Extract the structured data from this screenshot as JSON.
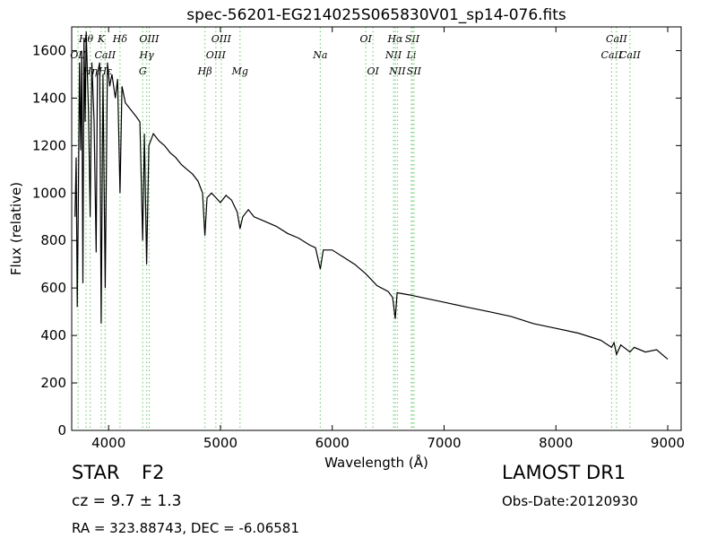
{
  "chart_data": {
    "type": "line",
    "title": "spec-56201-EG214025S065830V01_sp14-076.fits",
    "xlabel": "Wavelength (Å)",
    "ylabel": "Flux (relative)",
    "color": "#000000",
    "line_color": "#7fcf7f",
    "xlim": [
      3670,
      9120
    ],
    "ylim": [
      0,
      1700
    ],
    "xticks": [
      4000,
      5000,
      6000,
      7000,
      8000,
      9000
    ],
    "yticks": [
      0,
      200,
      400,
      600,
      800,
      1000,
      1200,
      1400,
      1600
    ],
    "x": [
      3700,
      3710,
      3720,
      3730,
      3740,
      3750,
      3760,
      3770,
      3780,
      3790,
      3800,
      3820,
      3835,
      3850,
      3870,
      3889,
      3900,
      3920,
      3934,
      3950,
      3970,
      3990,
      4010,
      4030,
      4060,
      4080,
      4102,
      4120,
      4150,
      4200,
      4250,
      4280,
      4305,
      4320,
      4340,
      4360,
      4400,
      4450,
      4500,
      4550,
      4600,
      4650,
      4700,
      4750,
      4800,
      4840,
      4861,
      4880,
      4920,
      4960,
      5000,
      5050,
      5100,
      5150,
      5175,
      5200,
      5250,
      5300,
      5400,
      5500,
      5600,
      5700,
      5800,
      5850,
      5893,
      5920,
      6000,
      6100,
      6200,
      6300,
      6400,
      6500,
      6540,
      6563,
      6580,
      6700,
      6800,
      6900,
      7000,
      7200,
      7400,
      7600,
      7800,
      8000,
      8200,
      8400,
      8498,
      8520,
      8542,
      8580,
      8662,
      8700,
      8800,
      8900,
      8950,
      9000
    ],
    "values": [
      900,
      1150,
      520,
      1000,
      1550,
      1180,
      1600,
      620,
      1650,
      1300,
      1680,
      1350,
      900,
      1550,
      1300,
      750,
      1500,
      1550,
      450,
      1500,
      600,
      1550,
      1450,
      1500,
      1400,
      1480,
      1000,
      1450,
      1380,
      1350,
      1320,
      1300,
      800,
      1250,
      700,
      1200,
      1250,
      1220,
      1200,
      1170,
      1150,
      1120,
      1100,
      1080,
      1050,
      1000,
      820,
      980,
      1000,
      980,
      960,
      990,
      970,
      920,
      850,
      900,
      930,
      900,
      880,
      860,
      830,
      810,
      780,
      770,
      680,
      760,
      760,
      730,
      700,
      660,
      610,
      585,
      560,
      470,
      580,
      570,
      560,
      550,
      540,
      520,
      500,
      480,
      450,
      430,
      410,
      380,
      350,
      370,
      320,
      360,
      330,
      350,
      330,
      340,
      320,
      300
    ],
    "spectral_lines": [
      {
        "label": "Hθ",
        "x": 3798
      },
      {
        "label": "OII",
        "x": 3727
      },
      {
        "label": "Hη",
        "x": 3835
      },
      {
        "label": "K",
        "x": 3934
      },
      {
        "label": "CaII",
        "x": 3969
      },
      {
        "label": "Hε",
        "x": 3970
      },
      {
        "label": "Hδ",
        "x": 4102
      },
      {
        "label": "Hγ",
        "x": 4340
      },
      {
        "label": "G",
        "x": 4305
      },
      {
        "label": "OIII",
        "x": 4363
      },
      {
        "label": "OIII",
        "x": 4959
      },
      {
        "label": "Hβ",
        "x": 4861
      },
      {
        "label": "OIII",
        "x": 5007
      },
      {
        "label": "Na",
        "x": 5893
      },
      {
        "label": "Mg",
        "x": 5175
      },
      {
        "label": "OI",
        "x": 6300
      },
      {
        "label": "NII",
        "x": 6548
      },
      {
        "label": "OI",
        "x": 6364
      },
      {
        "label": "Hα",
        "x": 6563
      },
      {
        "label": "Li",
        "x": 6708
      },
      {
        "label": "NII",
        "x": 6583
      },
      {
        "label": "SII",
        "x": 6716
      },
      {
        "label": "CaII",
        "x": 8498
      },
      {
        "label": "SII",
        "x": 6731
      },
      {
        "label": "CaII",
        "x": 8542
      },
      {
        "label": "CaII",
        "x": 8662
      }
    ]
  },
  "info": {
    "class": "STAR",
    "subclass": "F2",
    "cz": "cz = 9.7 ± 1.3",
    "coords": "RA = 323.88743, DEC = -6.06581",
    "survey": "LAMOST DR1",
    "obs_date": "Obs-Date:20120930"
  }
}
